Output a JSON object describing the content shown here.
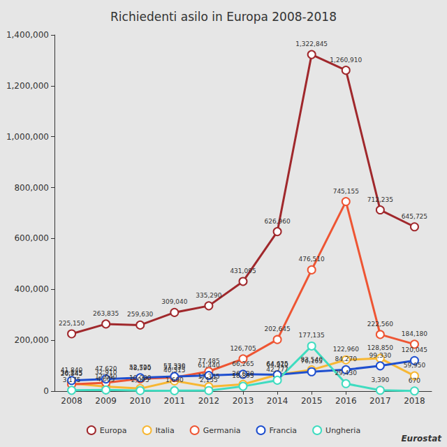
{
  "chart_data": {
    "type": "line",
    "title": "Richiedenti asilo in Europa 2008-2018",
    "annotations": [
      "Eurostat"
    ],
    "categories": [
      "2008",
      "2009",
      "2010",
      "2011",
      "2012",
      "2013",
      "2014",
      "2015",
      "2016",
      "2017",
      "2018"
    ],
    "series": [
      {
        "name": "Europa",
        "color": "#a0282c",
        "values": [
          225150,
          263835,
          259630,
          309040,
          335290,
          431095,
          626960,
          1322845,
          1260910,
          712235,
          645725
        ],
        "value_labels": [
          "225,150",
          "263,835",
          "259,630",
          "309,040",
          "335,290",
          "431,095",
          "626,960",
          "1,322,845",
          "1,260,910",
          "712,235",
          "645,725"
        ]
      },
      {
        "name": "Italia",
        "color": "#f7b733",
        "values": [
          30145,
          17640,
          10000,
          40315,
          17335,
          26620,
          64625,
          83540,
          122960,
          128850,
          59950
        ],
        "value_labels": [
          "30,145",
          "17,640",
          "10,000",
          "40,315",
          "17,335",
          "26,620",
          "64,625",
          "83,540",
          "122,960",
          "128,850",
          "59,950"
        ]
      },
      {
        "name": "Germania",
        "color": "#ee5533",
        "values": [
          26845,
          32910,
          48590,
          53235,
          77485,
          126705,
          202645,
          476510,
          745155,
          222560,
          184180
        ],
        "value_labels": [
          "26,845",
          "32,910",
          "48,590",
          "53,235",
          "77,485",
          "126,705",
          "202,645",
          "476,510",
          "745,155",
          "222,560",
          "184,180"
        ]
      },
      {
        "name": "Francia",
        "color": "#1e4fcf",
        "values": [
          41840,
          47620,
          52725,
          57330,
          61440,
          66265,
          64310,
          76165,
          84270,
          99330,
          120045
        ],
        "value_labels": [
          "41,840",
          "47,620",
          "52,725",
          "57,330",
          "61,440",
          "66,265",
          "64,310",
          "76,165",
          "84,270",
          "99,330",
          "120,045"
        ]
      },
      {
        "name": "Ungheria",
        "color": "#3fdcc0",
        "values": [
          3175,
          4665,
          2095,
          1690,
          2155,
          18895,
          42777,
          177135,
          29430,
          3390,
          670
        ],
        "value_labels": [
          "3,175",
          "4,665",
          "2,095",
          "1,690",
          "2,155",
          "18,895",
          "42,777",
          "177,135",
          "29,430",
          "3,390",
          "670"
        ]
      }
    ],
    "ylim": [
      0,
      1400000
    ],
    "yticks": [
      0,
      {
        "value": 200000,
        "label": "200,000"
      },
      {
        "value": 400000,
        "label": "400,000"
      },
      {
        "value": 600000,
        "label": "600,000"
      },
      {
        "value": 800000,
        "label": "800,000"
      },
      {
        "value": 1000000,
        "label": "1,000,000"
      },
      {
        "value": 1200000,
        "label": "1,200,000"
      },
      {
        "value": 1400000,
        "label": "1,400,000"
      }
    ],
    "grid": false,
    "legend": "bottom",
    "data_labels": true,
    "marker": "circle"
  }
}
